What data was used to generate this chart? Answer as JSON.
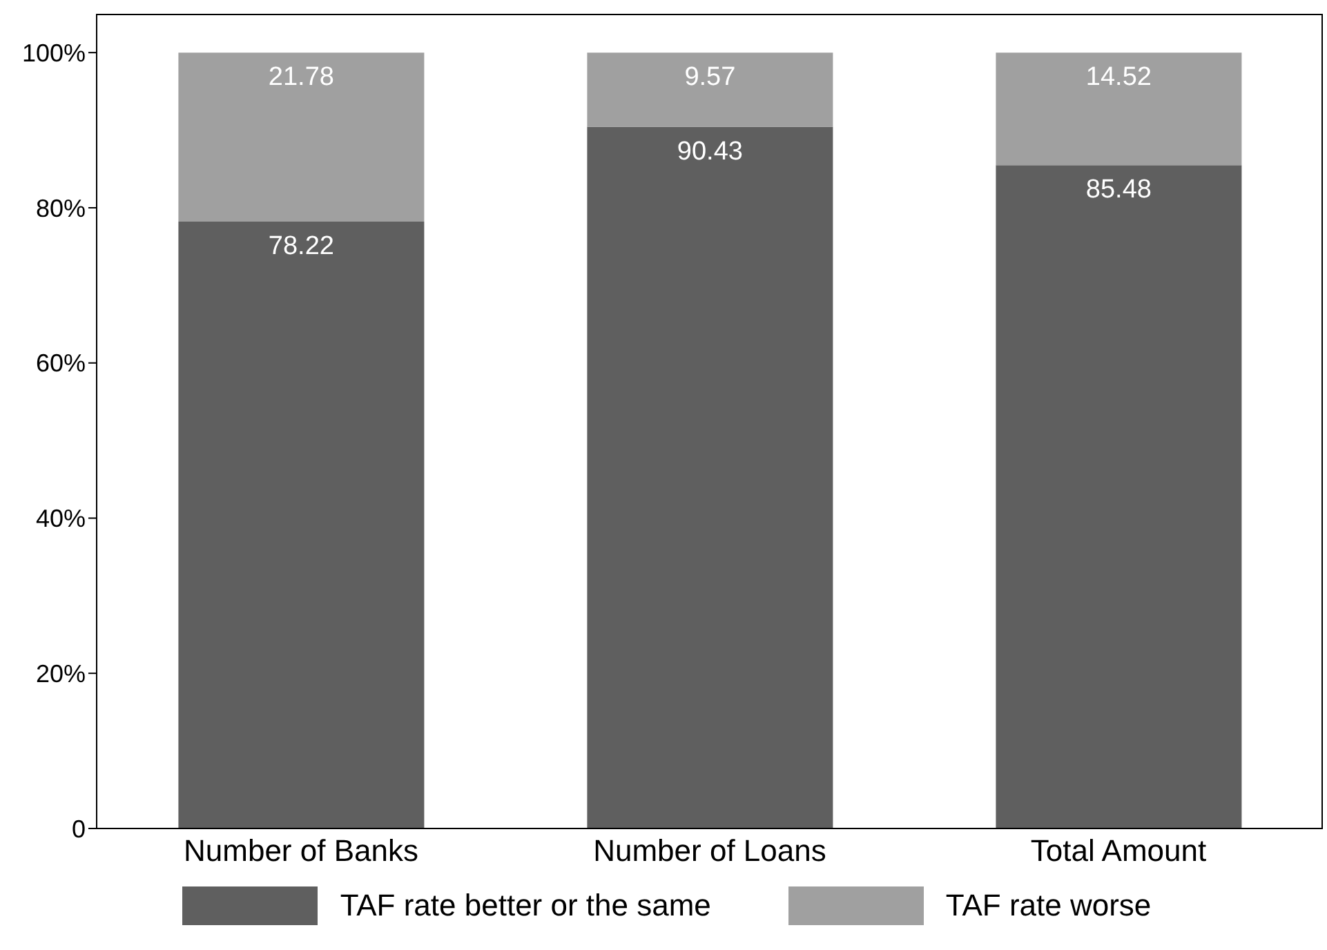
{
  "chart_data": {
    "type": "bar",
    "stacked": true,
    "categories": [
      "Number of Banks",
      "Number of Loans",
      "Total Amount"
    ],
    "series": [
      {
        "name": "TAF rate better or the same",
        "color": "#5f5f5f",
        "values": [
          78.22,
          90.43,
          85.48
        ]
      },
      {
        "name": "TAF rate worse",
        "color": "#a0a0a0",
        "values": [
          21.78,
          9.57,
          14.52
        ]
      }
    ],
    "ylim": [
      0,
      105
    ],
    "yticks": [
      0,
      {
        "value": 20,
        "label": "20%"
      },
      {
        "value": 40,
        "label": "40%"
      },
      {
        "value": 60,
        "label": "60%"
      },
      {
        "value": 80,
        "label": "80%"
      },
      {
        "value": 100,
        "label": "100%"
      }
    ],
    "data_labels": true,
    "grid": false,
    "legend": "bottom"
  }
}
